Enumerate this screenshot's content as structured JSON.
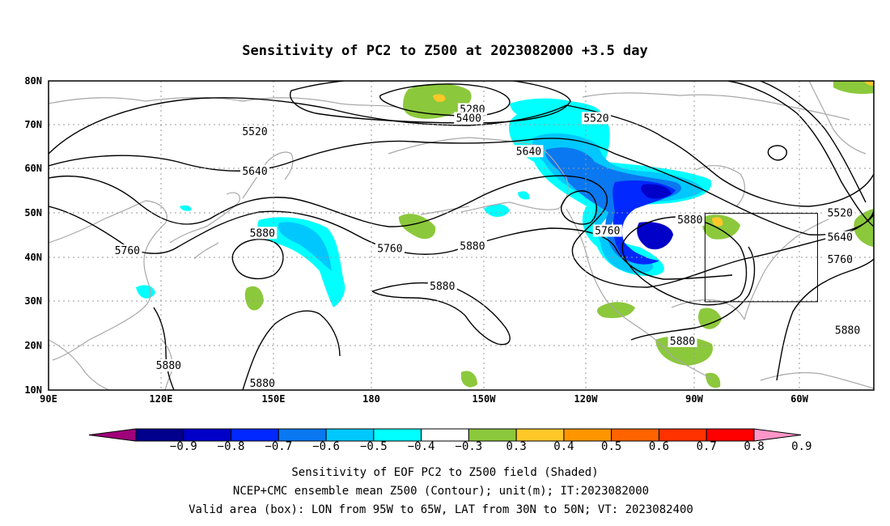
{
  "title": "Sensitivity of PC2 to Z500 at 2023082000 +3.5 day",
  "map": {
    "lon_ticks": [
      "90E",
      "120E",
      "150E",
      "180",
      "150W",
      "120W",
      "90W",
      "60W"
    ],
    "lat_ticks": [
      "80N",
      "70N",
      "60N",
      "50N",
      "40N",
      "30N",
      "20N",
      "10N"
    ],
    "grid": "dotted",
    "lon_range": [
      90,
      310
    ],
    "lat_range": [
      10,
      80
    ]
  },
  "contour_labels": [
    {
      "text": "5280",
      "lon": 203,
      "lat": 73.5
    },
    {
      "text": "5400",
      "lon": 202,
      "lat": 71.5
    },
    {
      "text": "5520",
      "lon": 145,
      "lat": 68.5
    },
    {
      "text": "5520",
      "lon": 236,
      "lat": 71.5
    },
    {
      "text": "5640",
      "lon": 145,
      "lat": 59.5
    },
    {
      "text": "5640",
      "lon": 218,
      "lat": 64.0
    },
    {
      "text": "5760",
      "lon": 111,
      "lat": 41.5
    },
    {
      "text": "5760",
      "lon": 181,
      "lat": 42.0
    },
    {
      "text": "5760",
      "lon": 239,
      "lat": 46.0
    },
    {
      "text": "5880",
      "lon": 147,
      "lat": 45.5
    },
    {
      "text": "5880",
      "lon": 203,
      "lat": 42.5
    },
    {
      "text": "5880",
      "lon": 195,
      "lat": 33.5
    },
    {
      "text": "5880",
      "lon": 122,
      "lat": 15.5
    },
    {
      "text": "5880",
      "lon": 147,
      "lat": 11.5
    },
    {
      "text": "5880",
      "lon": 261,
      "lat": 48.5
    },
    {
      "text": "5880",
      "lon": 259,
      "lat": 21.0
    },
    {
      "text": "5520",
      "lon": 301,
      "lat": 50.0
    },
    {
      "text": "5640",
      "lon": 301,
      "lat": 44.5
    },
    {
      "text": "5760",
      "lon": 301,
      "lat": 39.5
    },
    {
      "text": "5880",
      "lon": 303,
      "lat": 23.5
    }
  ],
  "valid_box": {
    "lon_min": 265,
    "lon_max": 295,
    "lat_min": 30,
    "lat_max": 50
  },
  "colorbar": {
    "labels": [
      "-0.9",
      "-0.8",
      "-0.7",
      "-0.6",
      "-0.5",
      "-0.4",
      "-0.3",
      "0.3",
      "0.4",
      "0.5",
      "0.6",
      "0.7",
      "0.8",
      "0.9"
    ],
    "colors": [
      "#a0007a",
      "#00008c",
      "#0000c8",
      "#0028ff",
      "#0a78f0",
      "#00c8ff",
      "#00ffff",
      "#ffffff",
      "#8cc83c",
      "#ffc828",
      "#ff9600",
      "#ff6400",
      "#ff3200",
      "#ff0000",
      "#ff96c8"
    ]
  },
  "captions": [
    "Sensitivity of EOF PC2 to Z500 field (Shaded)",
    "NCEP+CMC ensemble mean Z500 (Contour); unit(m); IT:2023082000",
    "Valid area (box): LON from 95W to 65W, LAT from 30N to 50N; VT: 2023082400"
  ]
}
